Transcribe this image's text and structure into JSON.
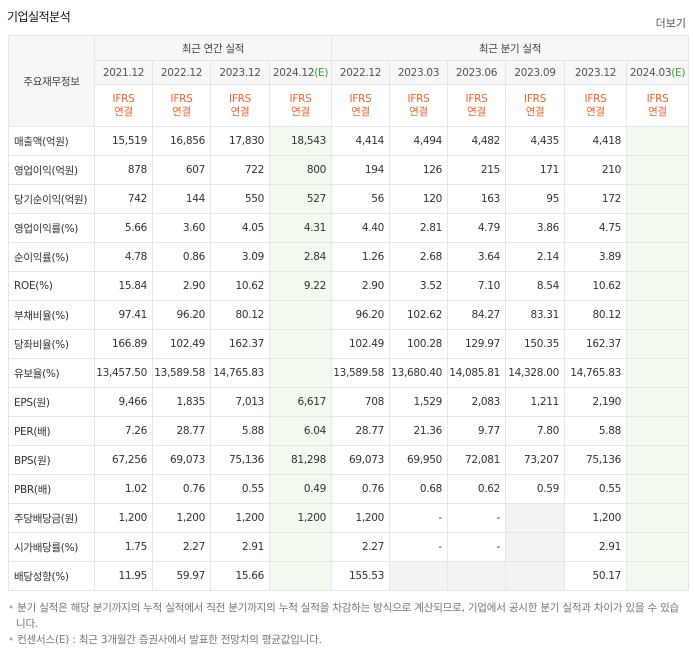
{
  "header": {
    "title": "기업실적분석",
    "more": "더보기"
  },
  "table": {
    "corner": "주요재무정보",
    "groups": [
      {
        "label": "최근 연간 실적",
        "span": 4
      },
      {
        "label": "최근 분기 실적",
        "span": 6
      }
    ],
    "periods": [
      {
        "date": "2021.12"
      },
      {
        "date": "2022.12"
      },
      {
        "date": "2023.12"
      },
      {
        "date": "2024.12",
        "mark": "(E)"
      },
      {
        "date": "2022.12"
      },
      {
        "date": "2023.03"
      },
      {
        "date": "2023.06"
      },
      {
        "date": "2023.09"
      },
      {
        "date": "2023.12"
      },
      {
        "date": "2024.03",
        "mark": "(E)"
      }
    ],
    "standards": [
      [
        "IFRS",
        "연결"
      ],
      [
        "IFRS",
        "연결"
      ],
      [
        "IFRS",
        "연결"
      ],
      [
        "IFRS",
        "연결"
      ],
      [
        "IFRS",
        "연결"
      ],
      [
        "IFRS",
        "연결"
      ],
      [
        "IFRS",
        "연결"
      ],
      [
        "IFRS",
        "연결"
      ],
      [
        "IFRS",
        "연결"
      ],
      [
        "IFRS",
        "연결"
      ]
    ],
    "row_groups": [
      [
        {
          "label": "매출액(억원)",
          "values": [
            "15,519",
            "16,856",
            "17,830",
            "18,543",
            "4,414",
            "4,494",
            "4,482",
            "4,435",
            "4,418",
            null
          ]
        },
        {
          "label": "영업이익(억원)",
          "values": [
            "878",
            "607",
            "722",
            "800",
            "194",
            "126",
            "215",
            "171",
            "210",
            null
          ]
        },
        {
          "label": "당기순이익(억원)",
          "values": [
            "742",
            "144",
            "550",
            "527",
            "56",
            "120",
            "163",
            "95",
            "172",
            null
          ]
        }
      ],
      [
        {
          "label": "영업이익률(%)",
          "values": [
            "5.66",
            "3.60",
            "4.05",
            "4.31",
            "4.40",
            "2.81",
            "4.79",
            "3.86",
            "4.75",
            null
          ]
        },
        {
          "label": "순이익률(%)",
          "values": [
            "4.78",
            "0.86",
            "3.09",
            "2.84",
            "1.26",
            "2.68",
            "3.64",
            "2.14",
            "3.89",
            null
          ]
        },
        {
          "label": "ROE(%)",
          "values": [
            "15.84",
            "2.90",
            "10.62",
            "9.22",
            "2.90",
            "3.52",
            "7.10",
            "8.54",
            "10.62",
            null
          ]
        }
      ],
      [
        {
          "label": "부채비율(%)",
          "values": [
            "97.41",
            "96.20",
            "80.12",
            null,
            "96.20",
            "102.62",
            "84.27",
            "83.31",
            "80.12",
            null
          ]
        },
        {
          "label": "당좌비율(%)",
          "values": [
            "166.89",
            "102.49",
            "162.37",
            null,
            "102.49",
            "100.28",
            "129.97",
            "150.35",
            "162.37",
            null
          ]
        },
        {
          "label": "유보율(%)",
          "values": [
            "13,457.50",
            "13,589.58",
            "14,765.83",
            null,
            "13,589.58",
            "13,680.40",
            "14,085.81",
            "14,328.00",
            "14,765.83",
            null
          ]
        }
      ],
      [
        {
          "label": "EPS(원)",
          "values": [
            "9,466",
            "1,835",
            "7,013",
            "6,617",
            "708",
            "1,529",
            "2,083",
            "1,211",
            "2,190",
            null
          ]
        },
        {
          "label": "PER(배)",
          "values": [
            "7.26",
            "28.77",
            "5.88",
            "6.04",
            "28.77",
            "21.36",
            "9.77",
            "7.80",
            "5.88",
            null
          ]
        },
        {
          "label": "BPS(원)",
          "values": [
            "67,256",
            "69,073",
            "75,136",
            "81,298",
            "69,073",
            "69,950",
            "72,081",
            "73,207",
            "75,136",
            null
          ]
        },
        {
          "label": "PBR(배)",
          "values": [
            "1.02",
            "0.76",
            "0.55",
            "0.49",
            "0.76",
            "0.68",
            "0.62",
            "0.59",
            "0.55",
            null
          ]
        }
      ],
      [
        {
          "label": "주당배당금(원)",
          "values": [
            "1,200",
            "1,200",
            "1,200",
            "1,200",
            "1,200",
            "-",
            "-",
            null,
            "1,200",
            null
          ]
        },
        {
          "label": "시가배당률(%)",
          "values": [
            "1.75",
            "2.27",
            "2.91",
            null,
            "2.27",
            "-",
            "-",
            null,
            "2.91",
            null
          ]
        },
        {
          "label": "배당성향(%)",
          "values": [
            "11.95",
            "59.97",
            "15.66",
            null,
            "155.53",
            null,
            null,
            null,
            "50.17",
            null
          ]
        }
      ]
    ]
  },
  "notes": [
    "분기 실적은 해당 분기까지의 누적 실적에서 직전 분기까지의 누적 실적을 차감하는 방식으로 계산되므로, 기업에서 공시한 분기 실적과 차이가 있을 수 있습니다.",
    "컨센서스(E) : 최근 3개월간 증권사에서 발표한 전망치의 평균값입니다."
  ]
}
